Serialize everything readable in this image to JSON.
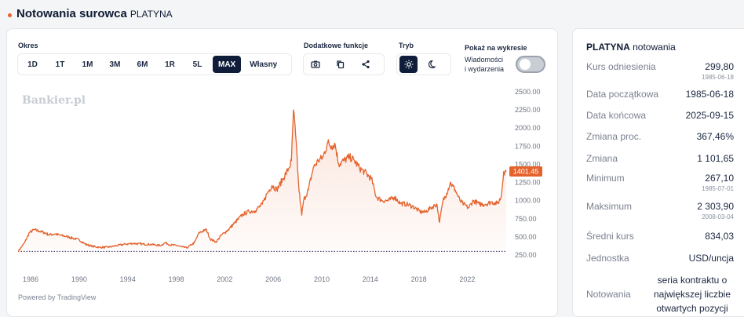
{
  "header": {
    "title": "Notowania surowca",
    "subtitle": "PLATYNA"
  },
  "controls": {
    "period_label": "Okres",
    "periods": [
      "1D",
      "1T",
      "1M",
      "3M",
      "6M",
      "1R",
      "5L",
      "MAX",
      "Własny"
    ],
    "active_period": "MAX",
    "extra_label": "Dodatkowe funkcje",
    "extra_icons": [
      "camera-icon",
      "copy-icon",
      "share-icon"
    ],
    "mode_label": "Tryb",
    "mode_icons": [
      "sun-icon",
      "moon-icon"
    ],
    "active_mode": "sun-icon",
    "show_label": "Pokaż na wykresie",
    "news_label_line1": "Wiadomości",
    "news_label_line2": "i wydarzenia",
    "news_toggle_on": false
  },
  "watermark": "Bankier.pl",
  "powered_by": "Powered by TradingView",
  "colors": {
    "line": "#e4632d",
    "active": "#0f1d3a",
    "accent": "#e4632d"
  },
  "chart_data": {
    "type": "area",
    "x_tick_labels": [
      "1986",
      "1990",
      "1994",
      "1998",
      "2002",
      "2006",
      "2010",
      "2014",
      "2018",
      "2022"
    ],
    "y_tick_labels": [
      "2500.00",
      "2250.00",
      "2000.00",
      "1750.00",
      "1500.00",
      "1250.00",
      "1000.00",
      "750.00",
      "500.00",
      "250.00"
    ],
    "ylim": [
      250,
      2500
    ],
    "xlim": [
      1985.46,
      2025.71
    ],
    "baseline_value": 299.8,
    "last_value_label": "1401.45",
    "grid": false,
    "series": [
      {
        "x": [
          1985.46,
          1986.0,
          1986.4,
          1986.8,
          1987.2,
          1987.6,
          1988.0,
          1988.5,
          1989.0,
          1989.6,
          1990.0,
          1990.5,
          1991.0,
          1991.6,
          1992.2,
          1993.0,
          1993.6,
          1994.3,
          1995.0,
          1995.8,
          1996.5,
          1997.2,
          1997.6,
          1998.0,
          1998.6,
          1999.0,
          1999.4,
          2000.0,
          2000.4,
          2001.0,
          2001.3,
          2001.8,
          2002.2,
          2002.8,
          2003.3,
          2004.0,
          2004.5,
          2005.0,
          2005.6,
          2006.0,
          2006.4,
          2006.8,
          2007.3,
          2007.8,
          2008.0,
          2008.17,
          2008.35,
          2008.6,
          2008.85,
          2009.0,
          2009.4,
          2009.8,
          2010.2,
          2010.6,
          2011.0,
          2011.3,
          2011.6,
          2011.9,
          2012.3,
          2012.8,
          2013.2,
          2013.6,
          2014.0,
          2014.6,
          2015.0,
          2015.5,
          2016.0,
          2016.5,
          2017.0,
          2017.5,
          2018.0,
          2018.6,
          2019.0,
          2019.5,
          2020.0,
          2020.21,
          2020.5,
          2020.8,
          2021.1,
          2021.5,
          2021.9,
          2022.2,
          2022.6,
          2023.0,
          2023.5,
          2024.0,
          2024.5,
          2025.0,
          2025.3,
          2025.5,
          2025.71
        ],
        "y": [
          299.8,
          420,
          560,
          600,
          580,
          560,
          530,
          540,
          520,
          500,
          480,
          460,
          400,
          370,
          355,
          360,
          380,
          400,
          410,
          400,
          395,
          380,
          420,
          390,
          380,
          360,
          350,
          420,
          560,
          600,
          470,
          430,
          520,
          600,
          690,
          810,
          850,
          860,
          950,
          1100,
          1210,
          1150,
          1300,
          1450,
          1550,
          2250,
          1900,
          1200,
          800,
          1000,
          1150,
          1450,
          1550,
          1600,
          1800,
          1750,
          1780,
          1500,
          1550,
          1600,
          1550,
          1450,
          1400,
          1300,
          1050,
          1000,
          1000,
          1050,
          960,
          950,
          920,
          850,
          840,
          900,
          950,
          700,
          1000,
          1100,
          1250,
          1150,
          1000,
          950,
          900,
          1000,
          950,
          950,
          980,
          960,
          1050,
          1400,
          1401.45
        ]
      }
    ]
  },
  "stats": {
    "title_bold": "PLATYNA",
    "title_rest": "notowania",
    "rows": [
      {
        "label": "Kurs odniesienia",
        "value": "299,80",
        "date": "1985-06-18"
      },
      {
        "label": "Data początkowa",
        "value": "1985-06-18"
      },
      {
        "label": "Data końcowa",
        "value": "2025-09-15"
      },
      {
        "label": "Zmiana proc.",
        "value": "367,46%"
      },
      {
        "label": "Zmiana",
        "value": "1 101,65"
      },
      {
        "label": "Minimum",
        "value": "267,10",
        "date": "1985-07-01"
      },
      {
        "label": "Maksimum",
        "value": "2 303,90",
        "date": "2008-03-04"
      },
      {
        "label": "Średni kurs",
        "value": "834,03"
      },
      {
        "label": "Jednostka",
        "value": "USD/uncja"
      },
      {
        "label": "Notowania",
        "value": "seria kontraktu o największej liczbie otwartych pozycji"
      }
    ]
  }
}
